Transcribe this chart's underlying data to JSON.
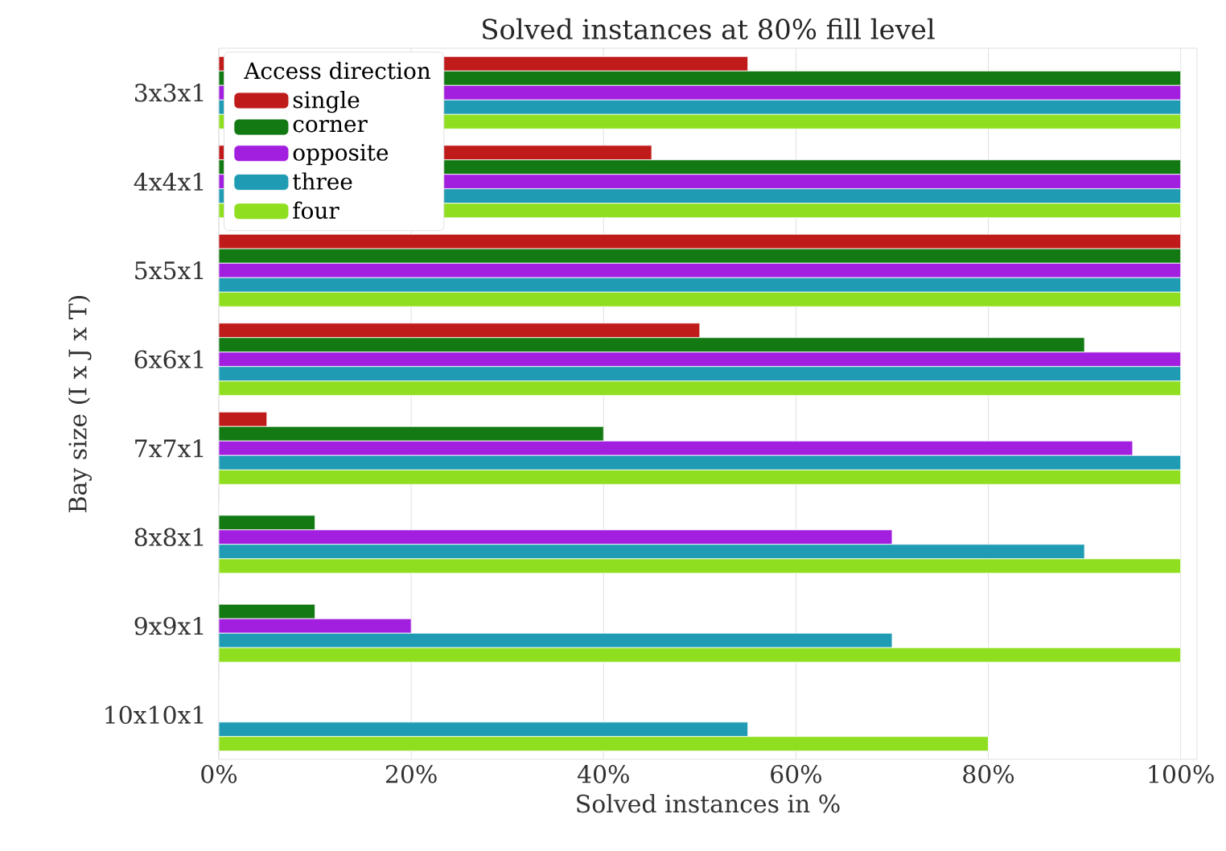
{
  "chart_data": {
    "type": "bar",
    "orientation": "horizontal",
    "title": "Solved instances at 80% fill level",
    "xlabel": "Solved instances in %",
    "ylabel": "Bay size (I x J x T)",
    "legend_title": "Access direction",
    "legend": "top left",
    "grid": "x",
    "categories": [
      "3x3x1",
      "4x4x1",
      "5x5x1",
      "6x6x1",
      "7x7x1",
      "8x8x1",
      "9x9x1",
      "10x10x1"
    ],
    "xlim": [
      0,
      101.7
    ],
    "xticks": [
      {
        "value": 0,
        "label": "0%"
      },
      {
        "value": 20,
        "label": "20%"
      },
      {
        "value": 40,
        "label": "40%"
      },
      {
        "value": 60,
        "label": "60%"
      },
      {
        "value": 80,
        "label": "80%"
      },
      {
        "value": 100,
        "label": "100%"
      }
    ],
    "series": [
      {
        "name": "single",
        "color": "#bf1b1b",
        "values": [
          55,
          45,
          100,
          50,
          5,
          0,
          0,
          0
        ]
      },
      {
        "name": "corner",
        "color": "#137a13",
        "values": [
          100,
          100,
          100,
          90,
          40,
          10,
          10,
          0
        ]
      },
      {
        "name": "opposite",
        "color": "#a31fe0",
        "values": [
          100,
          100,
          100,
          100,
          95,
          70,
          20,
          0
        ]
      },
      {
        "name": "three",
        "color": "#1f9cb3",
        "values": [
          100,
          100,
          100,
          100,
          100,
          90,
          70,
          55
        ]
      },
      {
        "name": "four",
        "color": "#8fdf20",
        "values": [
          100,
          100,
          100,
          100,
          100,
          100,
          100,
          80
        ]
      }
    ]
  }
}
